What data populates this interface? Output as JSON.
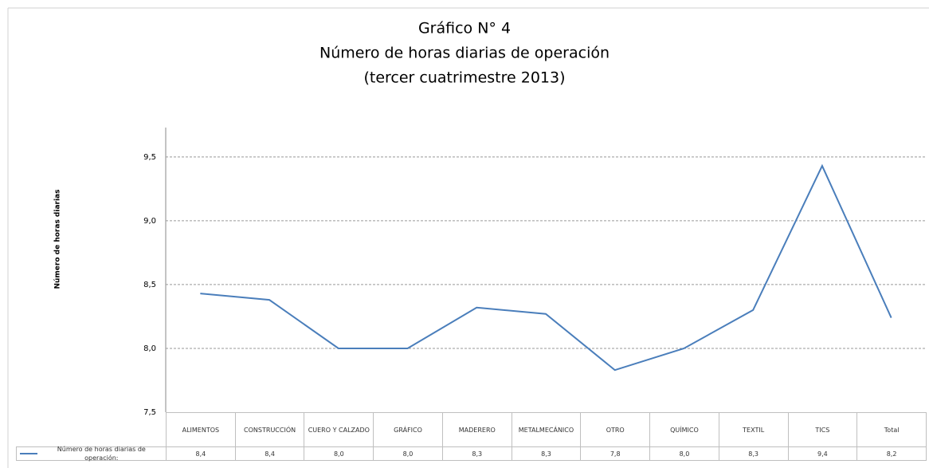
{
  "chart_data": {
    "type": "line",
    "title": "Gráfico N° 4",
    "subtitle": [
      "Número de horas diarias de operación",
      "(tercer cuatrimestre 2013)"
    ],
    "y_label": "Número de horas diarias",
    "categories": [
      "ALIMENTOS",
      "CONSTRUCCIÓN",
      "CUERO Y CALZADO",
      "GRÁFICO",
      "MADERERO",
      "METALMECÁNICO",
      "OTRO",
      "QUÍMICO",
      "TEXTIL",
      "TICS",
      "Total"
    ],
    "series": [
      {
        "name": "Número de horas diarias de operación:",
        "color": "#4a7ebb",
        "values": [
          8.43,
          8.38,
          8.0,
          8.0,
          8.32,
          8.27,
          7.83,
          8.0,
          8.3,
          9.43,
          8.24
        ],
        "value_labels": [
          "8,4",
          "8,4",
          "8,0",
          "8,0",
          "8,3",
          "8,3",
          "7,8",
          "8,0",
          "8,3",
          "9,4",
          "8,2"
        ]
      }
    ],
    "ylim": [
      7.5,
      9.73
    ],
    "yticks": [
      {
        "value": 7.5,
        "label": "7,5"
      },
      {
        "value": 8.0,
        "label": "8,0"
      },
      {
        "value": 8.5,
        "label": "8,5"
      },
      {
        "value": 9.0,
        "label": "9,0"
      },
      {
        "value": 9.5,
        "label": "9,5"
      }
    ],
    "grid": true
  }
}
